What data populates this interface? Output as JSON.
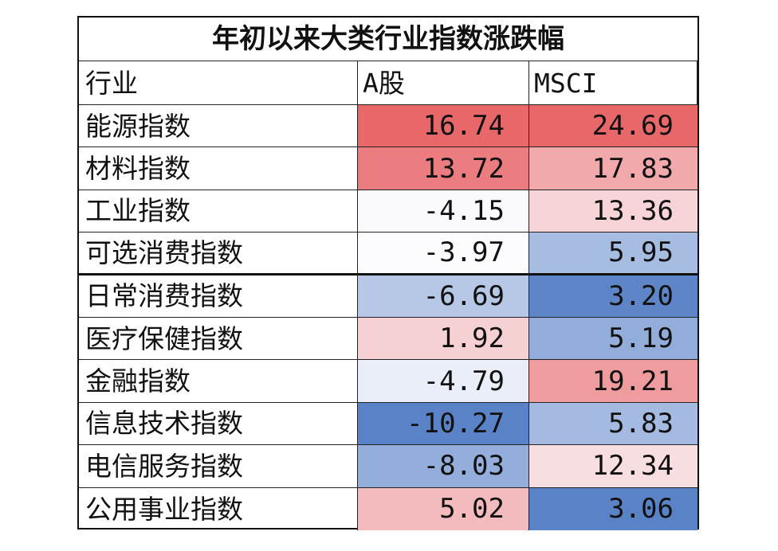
{
  "table": {
    "title": "年初以来大类行业指数涨跌幅",
    "header": [
      "行业",
      "A股",
      "MSCI"
    ],
    "rows": [
      [
        "能源指数",
        "16.74",
        "24.69"
      ],
      [
        "材料指数",
        "13.72",
        "17.83"
      ],
      [
        "工业指数",
        "-4.15",
        "13.36"
      ],
      [
        "可选消费指数",
        "-3.97",
        "5.95"
      ],
      [
        "日常消费指数",
        "-6.69",
        "3.20"
      ],
      [
        "医疗保健指数",
        "1.92",
        "5.19"
      ],
      [
        "金融指数",
        "-4.79",
        "19.21"
      ],
      [
        "信息技术指数",
        "-10.27",
        "5.83"
      ],
      [
        "电信服务指数",
        "-8.03",
        "12.34"
      ],
      [
        "公用事业指数",
        "5.02",
        "3.06"
      ]
    ]
  }
}
